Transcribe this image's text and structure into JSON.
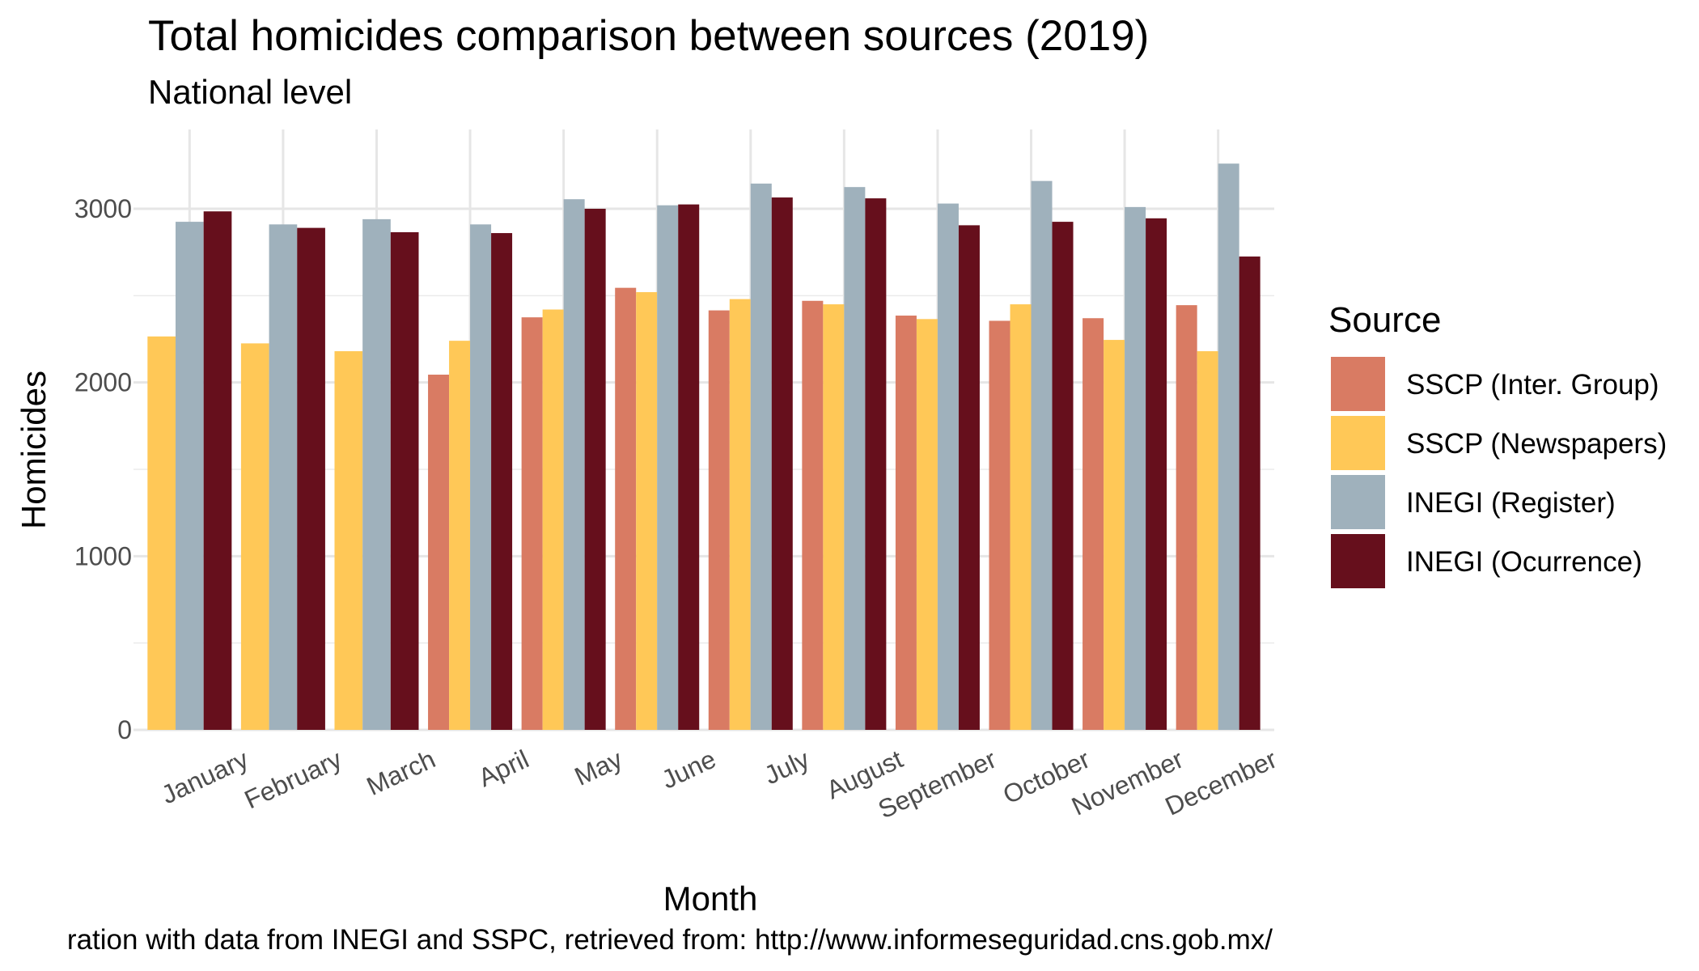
{
  "chart_data": {
    "type": "bar",
    "title": "Total homicides comparison between sources (2019)",
    "subtitle": "National level",
    "xlabel": "Month",
    "ylabel": "Homicides",
    "caption": "ration with data from INEGI and SSPC, retrieved from: http://www.informeseguridad.cns.gob.mx/",
    "categories": [
      "January",
      "February",
      "March",
      "April",
      "May",
      "June",
      "July",
      "August",
      "September",
      "October",
      "November",
      "December"
    ],
    "ylim": [
      0,
      3400
    ],
    "yticks": [
      0,
      1000,
      2000,
      3000
    ],
    "grid": true,
    "legend_title": "Source",
    "legend_position": "right",
    "series": [
      {
        "name": "SSCP (Inter. Group)",
        "color": "#D97B63",
        "values": [
          null,
          null,
          null,
          2045,
          2375,
          2545,
          2415,
          2470,
          2385,
          2355,
          2370,
          2445
        ]
      },
      {
        "name": "SSCP (Newspapers)",
        "color": "#FFC857",
        "values": [
          2265,
          2225,
          2180,
          2240,
          2420,
          2520,
          2480,
          2450,
          2365,
          2450,
          2245,
          2180
        ]
      },
      {
        "name": "INEGI (Register)",
        "color": "#9FB1BC",
        "values": [
          2925,
          2910,
          2940,
          2910,
          3055,
          3020,
          3145,
          3125,
          3030,
          3160,
          3010,
          3260
        ]
      },
      {
        "name": "INEGI (Ocurrence)",
        "color": "#660F1C",
        "values": [
          2985,
          2890,
          2865,
          2860,
          3000,
          3025,
          3065,
          3060,
          2905,
          2925,
          2945,
          2725
        ]
      }
    ]
  }
}
